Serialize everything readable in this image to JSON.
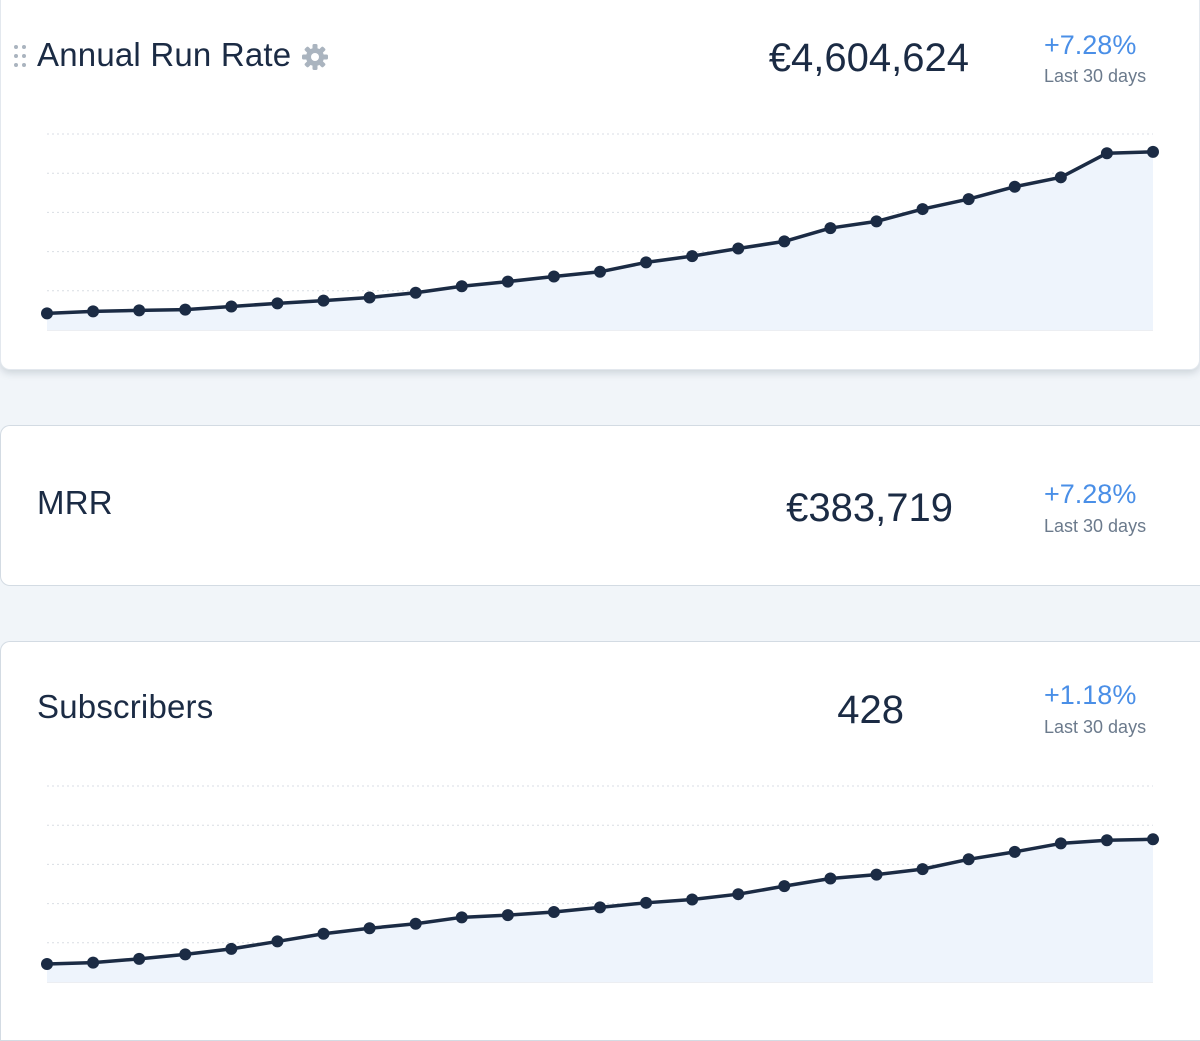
{
  "colors": {
    "line": "#1b2b44",
    "fill": "#eef4fc",
    "grid": "#d9dee4",
    "accent": "#4a8fe7"
  },
  "cards": {
    "arr": {
      "title": "Annual Run Rate",
      "value": "€4,604,624",
      "change": "+7.28%",
      "period": "Last 30 days",
      "icons": [
        "drag-handle-icon",
        "gear-icon"
      ]
    },
    "mrr": {
      "title": "MRR",
      "value": "€383,719",
      "change": "+7.28%",
      "period": "Last 30 days"
    },
    "subscribers": {
      "title": "Subscribers",
      "value": "428",
      "change": "+1.18%",
      "period": "Last 30 days"
    }
  },
  "chart_data": [
    {
      "type": "line",
      "series": [
        {
          "values": [
            8.5,
            9.5,
            10.0,
            10.4,
            12.0,
            13.6,
            15.0,
            16.6,
            19.0,
            22.3,
            24.7,
            27.3,
            29.7,
            34.5,
            37.7,
            41.6,
            45.2,
            52.0,
            55.4,
            61.7,
            66.8,
            73.1,
            77.9,
            90.2,
            90.9
          ]
        }
      ],
      "ylim": [
        0,
        100
      ],
      "grid": true,
      "area": true
    },
    {
      "type": "line",
      "series": [
        {
          "values": [
            9.2,
            9.9,
            11.8,
            14.1,
            16.9,
            20.7,
            24.6,
            27.4,
            29.7,
            33.0,
            34.1,
            35.7,
            38.1,
            40.4,
            42.1,
            44.8,
            48.9,
            52.8,
            54.8,
            57.6,
            62.6,
            66.4,
            70.7,
            72.3,
            72.8
          ]
        }
      ],
      "ylim": [
        0,
        100
      ],
      "grid": true,
      "area": true
    }
  ]
}
